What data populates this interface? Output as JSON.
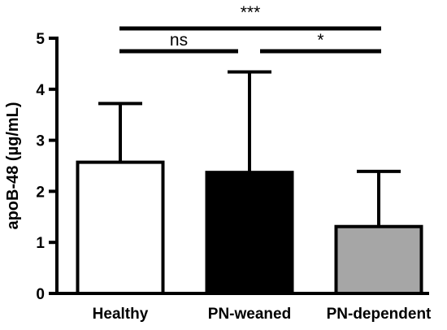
{
  "chart_data": {
    "type": "bar",
    "categories": [
      "Healthy",
      "PN-weaned",
      "PN-dependent"
    ],
    "values": [
      2.57,
      2.37,
      1.31
    ],
    "error_upper": [
      3.72,
      4.34,
      2.39
    ],
    "bar_colors": [
      "#ffffff",
      "#000000",
      "#a6a6a6"
    ],
    "ylabel": "apoB-48 (µg/mL)",
    "ylim": [
      0,
      5
    ],
    "yticks": [
      0,
      1,
      2,
      3,
      4,
      5
    ],
    "grid": false,
    "significance": [
      {
        "from": 0,
        "to": 2,
        "label": "***"
      },
      {
        "from": 0,
        "to": 1,
        "label": "ns"
      },
      {
        "from": 1,
        "to": 2,
        "label": "*"
      }
    ]
  }
}
